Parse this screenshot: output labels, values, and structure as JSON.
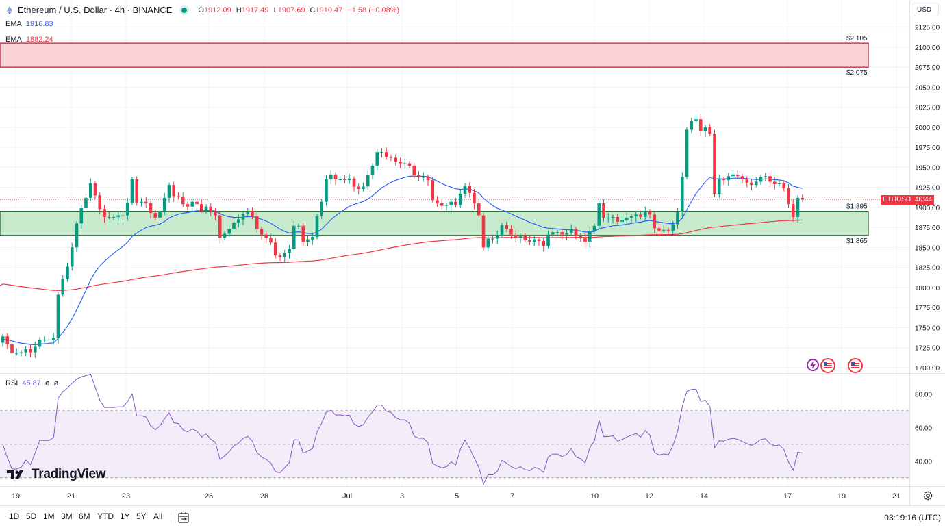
{
  "header": {
    "symbol": "Ethereum / U.S. Dollar · 4h · BINANCE",
    "open_label": "O",
    "open": "1912.09",
    "high_label": "H",
    "high": "1917.49",
    "low_label": "L",
    "low": "1907.69",
    "close_label": "C",
    "close": "1910.47",
    "change": "−1.58 (−0.08%)"
  },
  "indicators": {
    "ema1_label": "EMA",
    "ema1_value": "1916.83",
    "ema2_label": "EMA",
    "ema2_value": "1882.24",
    "rsi_label": "RSI",
    "rsi_value": "45.87",
    "rsi_extra1": "ø",
    "rsi_extra2": "ø"
  },
  "currency_button": "USD",
  "price_tag": {
    "symbol": "ETHUSD",
    "countdown": "40:44"
  },
  "logo_text": "TradingView",
  "timeframes": [
    "1D",
    "5D",
    "1M",
    "3M",
    "6M",
    "YTD",
    "1Y",
    "5Y",
    "All"
  ],
  "clock": "03:19:16 (UTC)",
  "colors": {
    "up": "#089981",
    "down": "#f23645",
    "ema_fast": "#2962ff",
    "ema_slow": "#f23645",
    "rsi": "#7e57c2",
    "support_zone": "#c8ebcd",
    "resistance_zone": "#f9d3d6"
  },
  "chart_data": [
    {
      "type": "candlestick",
      "title": "Ethereum / U.S. Dollar · 4h · BINANCE",
      "y_ticks": [
        1700,
        1725,
        1750,
        1775,
        1800,
        1825,
        1850,
        1875,
        1900,
        1925,
        1950,
        1975,
        2000,
        2025,
        2050,
        2075,
        2100,
        2125
      ],
      "ylim": [
        1693,
        2135
      ],
      "x_tick_labels": [
        "19",
        "21",
        "23",
        "26",
        "28",
        "Jul",
        "3",
        "5",
        "7",
        "10",
        "12",
        "14",
        "17",
        "19",
        "21"
      ],
      "zones": [
        {
          "name": "resistance",
          "low": 2075,
          "high": 2105,
          "low_label": "$2,075",
          "high_label": "$2,105"
        },
        {
          "name": "support",
          "low": 1865,
          "high": 1895,
          "low_label": "$1,865",
          "high_label": "$1,895"
        }
      ],
      "close": [
        1739,
        1729,
        1718,
        1718,
        1719,
        1723,
        1719,
        1726,
        1735,
        1735,
        1735,
        1737,
        1791,
        1811,
        1826,
        1850,
        1880,
        1899,
        1912,
        1930,
        1915,
        1898,
        1888,
        1888,
        1888,
        1890,
        1890,
        1906,
        1935,
        1906,
        1907,
        1905,
        1893,
        1887,
        1895,
        1912,
        1928,
        1914,
        1913,
        1904,
        1901,
        1907,
        1904,
        1896,
        1901,
        1894,
        1890,
        1862,
        1867,
        1873,
        1881,
        1885,
        1892,
        1895,
        1889,
        1873,
        1866,
        1862,
        1856,
        1840,
        1838,
        1843,
        1848,
        1877,
        1877,
        1857,
        1860,
        1863,
        1889,
        1907,
        1935,
        1941,
        1935,
        1935,
        1934,
        1936,
        1926,
        1923,
        1926,
        1940,
        1952,
        1969,
        1969,
        1963,
        1962,
        1957,
        1955,
        1955,
        1952,
        1940,
        1938,
        1938,
        1934,
        1909,
        1905,
        1902,
        1903,
        1907,
        1903,
        1917,
        1927,
        1918,
        1905,
        1890,
        1850,
        1861,
        1861,
        1865,
        1878,
        1873,
        1866,
        1862,
        1864,
        1859,
        1857,
        1860,
        1858,
        1852,
        1866,
        1869,
        1869,
        1866,
        1868,
        1873,
        1864,
        1862,
        1857,
        1870,
        1877,
        1905,
        1887,
        1887,
        1888,
        1882,
        1884,
        1887,
        1889,
        1891,
        1888,
        1895,
        1891,
        1874,
        1871,
        1872,
        1871,
        1879,
        1894,
        1938,
        1997,
        2008,
        2010,
        1995,
        2000,
        1992,
        1917,
        1935,
        1934,
        1939,
        1941,
        1939,
        1935,
        1931,
        1928,
        1932,
        1938,
        1939,
        1932,
        1929,
        1930,
        1924,
        1904,
        1888,
        1912,
        1910
      ],
      "rsi": {
        "ylim": [
          25,
          92
        ],
        "y_ticks": [
          40,
          60,
          80
        ],
        "bands": [
          30,
          50,
          70
        ]
      }
    }
  ]
}
